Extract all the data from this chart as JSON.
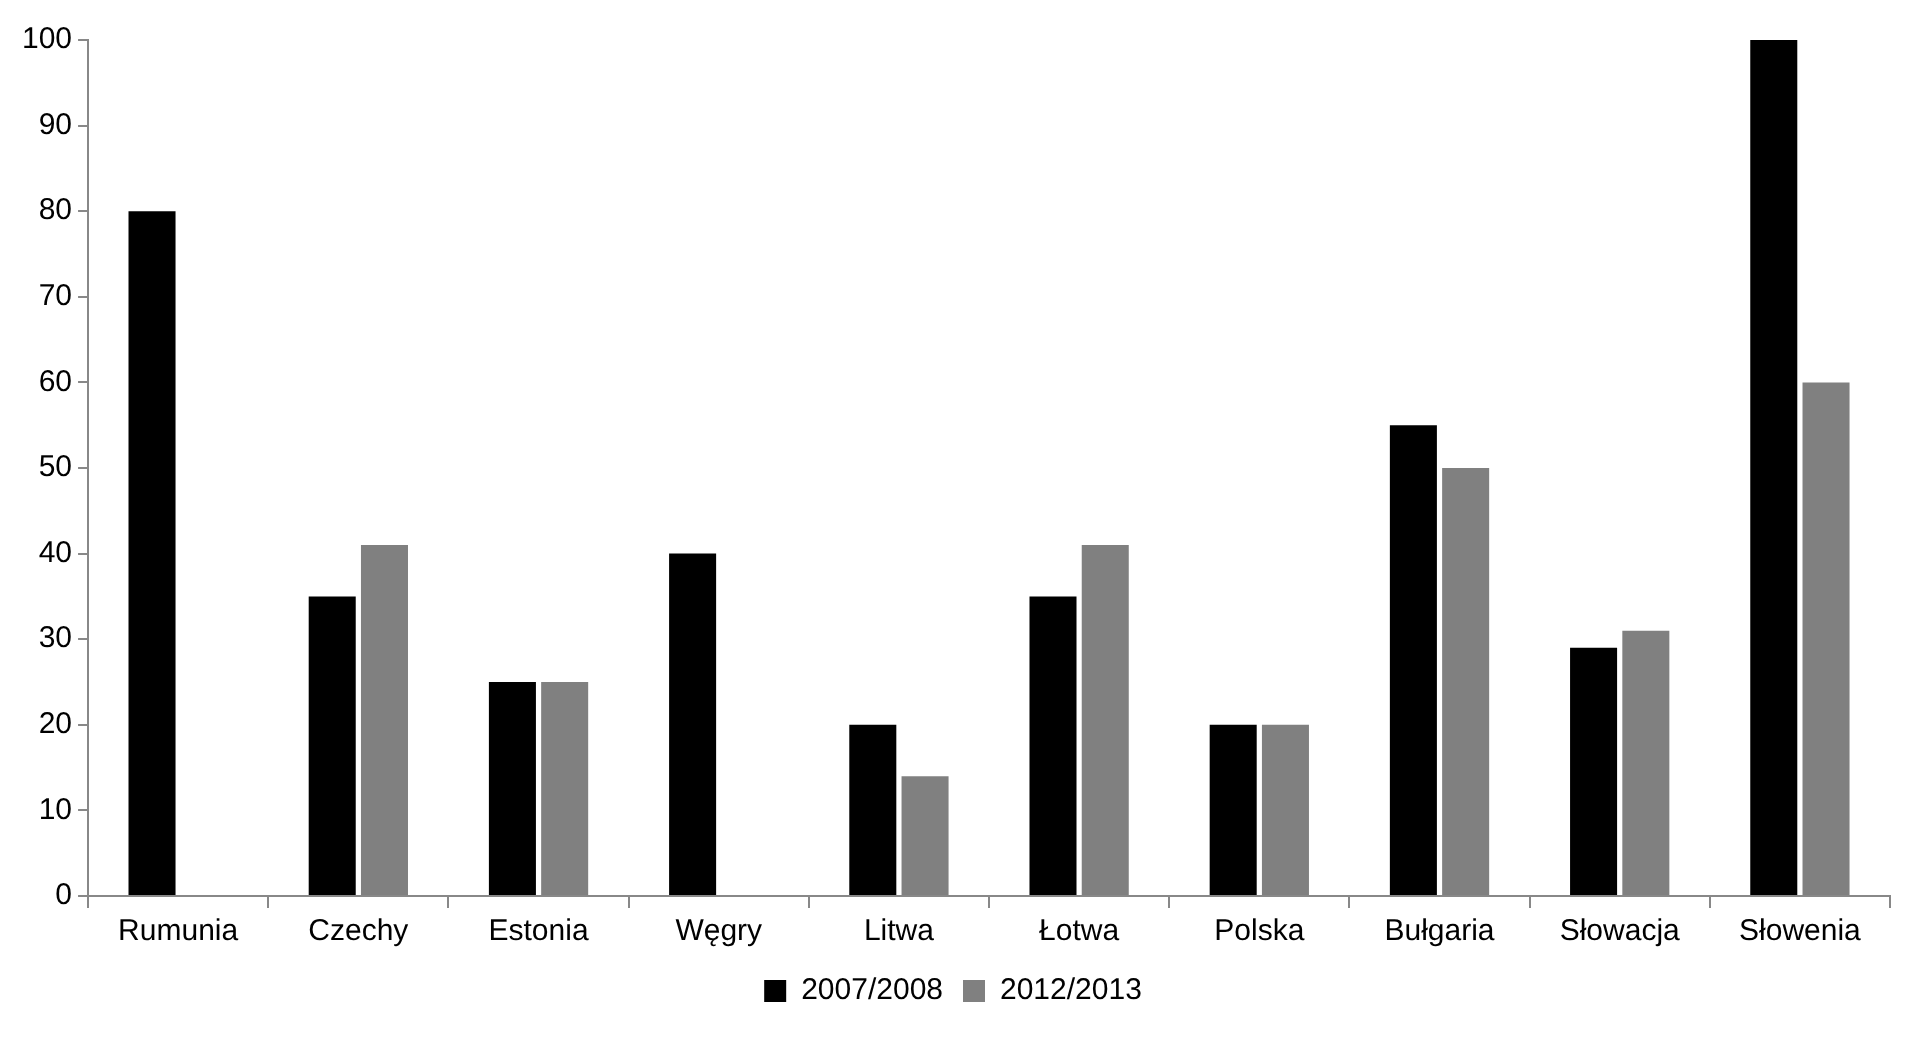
{
  "chart_data": {
    "type": "bar",
    "categories": [
      "Rumunia",
      "Czechy",
      "Estonia",
      "Węgry",
      "Litwa",
      "Łotwa",
      "Polska",
      "Bułgaria",
      "Słowacja",
      "Słowenia"
    ],
    "series": [
      {
        "name": "2007/2008",
        "color": "#000000",
        "values": [
          80,
          35,
          25,
          40,
          20,
          35,
          20,
          55,
          29,
          100
        ]
      },
      {
        "name": "2012/2013",
        "color": "#808080",
        "values": [
          null,
          41,
          25,
          null,
          14,
          41,
          20,
          50,
          31,
          60
        ]
      }
    ],
    "ylim": [
      0,
      100
    ],
    "yticks": [
      0,
      10,
      20,
      30,
      40,
      50,
      60,
      70,
      80,
      90,
      100
    ],
    "grid": false,
    "legend": "bottom"
  }
}
